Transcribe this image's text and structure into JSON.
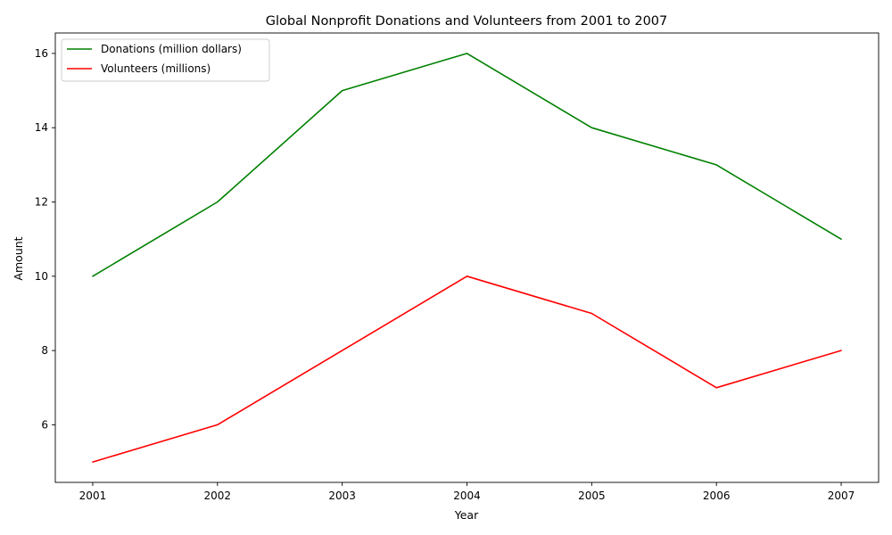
{
  "chart_data": {
    "type": "line",
    "title": "Global Nonprofit Donations and Volunteers from 2001 to 2007",
    "xlabel": "Year",
    "ylabel": "Amount",
    "categories": [
      "2001",
      "2002",
      "2003",
      "2004",
      "2005",
      "2006",
      "2007"
    ],
    "x": [
      2001,
      2002,
      2003,
      2004,
      2005,
      2006,
      2007
    ],
    "ylim": [
      4.45,
      16.55
    ],
    "yticks": [
      6,
      8,
      10,
      12,
      14,
      16
    ],
    "grid": false,
    "legend_position": "top-left",
    "series": [
      {
        "name": "Donations (million dollars)",
        "color": "#008000",
        "values": [
          10,
          12,
          15,
          16,
          14,
          13,
          11
        ]
      },
      {
        "name": "Volunteers (millions)",
        "color": "#ff0000",
        "values": [
          5,
          6,
          8,
          10,
          9,
          7,
          8
        ]
      }
    ]
  }
}
